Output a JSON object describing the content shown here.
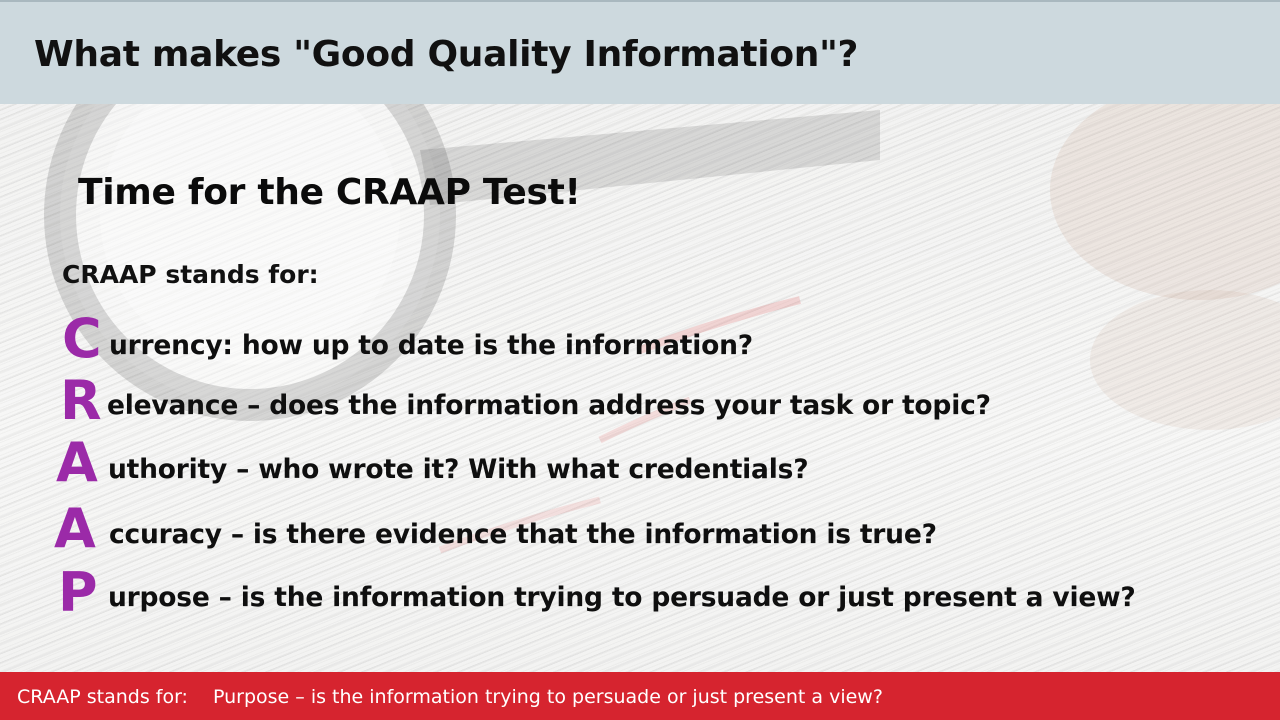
{
  "slide": {
    "title": "What makes \"Good Quality Information\"?",
    "subtitle": "Time for the CRAAP Test!",
    "intro": "CRAAP stands for:",
    "items": [
      {
        "letter": "C",
        "text": "urrency: how up to date is the information?"
      },
      {
        "letter": "R",
        "text": "elevance – does the information address your task or topic?"
      },
      {
        "letter": "A",
        "text": "uthority – who wrote it? With what credentials?"
      },
      {
        "letter": "A",
        "text": "ccuracy – is there evidence that the information is true?"
      },
      {
        "letter": "P",
        "text": "urpose – is the information trying to persuade or just present a view?"
      }
    ],
    "accent_color": "#9b2aa8",
    "header_color": "#cdd9de"
  },
  "caption": {
    "label": "CRAAP stands for:",
    "text": "Purpose – is the information trying to persuade or just present a view?",
    "bar_color": "#d6242f"
  }
}
